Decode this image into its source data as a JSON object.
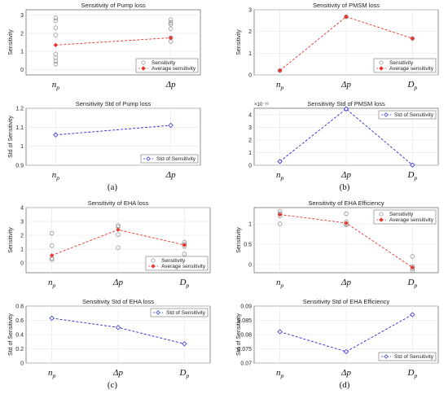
{
  "colors": {
    "sens": "#888888",
    "avg": "#e8352e",
    "std": "#2b2bd6",
    "grid": "#e6e6e6",
    "axis": "#444444"
  },
  "captions": [
    "(a)",
    "(b)",
    "(c)",
    "(d)"
  ],
  "chart_data": [
    {
      "id": "a1",
      "type": "scatter+line",
      "title": "Sensitivity of Pump loss",
      "ylabel": "Sensitivity",
      "categories": [
        {
          "base": "n",
          "sub": "p"
        },
        {
          "base": "Δp",
          "sub": ""
        }
      ],
      "ylim": [
        -0.3,
        3.3
      ],
      "yticks": [
        0,
        1,
        2,
        3
      ],
      "grid": true,
      "legend": "bottom-right",
      "series": [
        {
          "name": "Sensitivity",
          "kind": "markers",
          "points": [
            [
              0,
              2.85
            ],
            [
              0,
              2.7
            ],
            [
              0,
              2.3
            ],
            [
              0,
              1.9
            ],
            [
              0,
              0.85
            ],
            [
              0,
              0.65
            ],
            [
              0,
              0.45
            ],
            [
              0,
              0.3
            ],
            [
              1,
              2.75
            ],
            [
              1,
              2.6
            ],
            [
              1,
              2.5
            ],
            [
              1,
              2.25
            ],
            [
              1,
              1.75
            ],
            [
              1,
              1.55
            ]
          ]
        },
        {
          "name": "Average sensitivity",
          "kind": "avg",
          "values": [
            1.35,
            1.75
          ]
        }
      ]
    },
    {
      "id": "b1",
      "type": "scatter+line",
      "title": "Sensitivity of PMSM loss",
      "ylabel": "Sensitivity",
      "categories": [
        {
          "base": "n",
          "sub": "p"
        },
        {
          "base": "Δp",
          "sub": ""
        },
        {
          "base": "D",
          "sub": "p"
        }
      ],
      "ylim": [
        0,
        3
      ],
      "yticks": [
        0,
        1,
        2,
        3
      ],
      "grid": true,
      "legend": "bottom-right",
      "series": [
        {
          "name": "Sensitivity",
          "kind": "markers",
          "points": [
            [
              0,
              0.2
            ],
            [
              1,
              2.68
            ],
            [
              2,
              1.68
            ]
          ]
        },
        {
          "name": "Average sensitivity",
          "kind": "avg",
          "values": [
            0.2,
            2.68,
            1.68
          ]
        }
      ]
    },
    {
      "id": "a2",
      "type": "line",
      "title": "Sensitivity Std of Pump loss",
      "ylabel": "Std of Sensitivity",
      "categories": [
        {
          "base": "n",
          "sub": "p"
        },
        {
          "base": "Δp",
          "sub": ""
        }
      ],
      "ylim": [
        0.9,
        1.2
      ],
      "yticks": [
        0.9,
        1,
        1.1,
        1.2
      ],
      "grid": true,
      "legend": "bottom-right",
      "series": [
        {
          "name": "Std of Sensitivity",
          "kind": "std",
          "values": [
            1.06,
            1.11
          ]
        }
      ]
    },
    {
      "id": "b2",
      "type": "line",
      "title": "Sensitivity Std of PMSM loss",
      "ylabel": "",
      "yexponent": "×10⁻¹⁶",
      "categories": [
        {
          "base": "n",
          "sub": "p"
        },
        {
          "base": "Δp",
          "sub": ""
        },
        {
          "base": "D",
          "sub": "p"
        }
      ],
      "ylim": [
        0,
        4.5
      ],
      "yticks": [
        0,
        1,
        2,
        3,
        4
      ],
      "grid": true,
      "legend": "top-right",
      "series": [
        {
          "name": "Std of Sensitivity",
          "kind": "std",
          "values": [
            0.3,
            4.45,
            0.02
          ]
        }
      ]
    },
    {
      "id": "c1",
      "type": "scatter+line",
      "title": "Sensitivity of EHA loss",
      "ylabel": "Sensitivity",
      "categories": [
        {
          "base": "n",
          "sub": "p"
        },
        {
          "base": "Δp",
          "sub": ""
        },
        {
          "base": "D",
          "sub": "p"
        }
      ],
      "ylim": [
        -0.7,
        4
      ],
      "yticks": [
        -1,
        0,
        1,
        2,
        3,
        4
      ],
      "yticklabels": [
        "",
        "0",
        "1",
        "2",
        "3",
        "4"
      ],
      "grid": true,
      "legend": "bottom-right",
      "series": [
        {
          "name": "Sensitivity",
          "kind": "markers",
          "points": [
            [
              0,
              2.15
            ],
            [
              0,
              1.25
            ],
            [
              0,
              0.35
            ],
            [
              0,
              0.25
            ],
            [
              1,
              2.7
            ],
            [
              1,
              2.6
            ],
            [
              1,
              2.05
            ],
            [
              1,
              1.1
            ],
            [
              2,
              1.5
            ],
            [
              2,
              1.35
            ],
            [
              2,
              1.2
            ],
            [
              2,
              0.65
            ]
          ]
        },
        {
          "name": "Average sensitivity",
          "kind": "avg",
          "values": [
            0.55,
            2.4,
            1.3
          ]
        }
      ]
    },
    {
      "id": "d1",
      "type": "scatter+line",
      "title": "Sensitivity of EHA Efficiency",
      "ylabel": "Sensitivity",
      "categories": [
        {
          "base": "n",
          "sub": "p"
        },
        {
          "base": "Δp",
          "sub": ""
        },
        {
          "base": "D",
          "sub": "p"
        }
      ],
      "ylim": [
        -0.2,
        1.4
      ],
      "yticks": [
        0,
        0.5,
        1
      ],
      "grid": true,
      "legend": "top-right",
      "series": [
        {
          "name": "Sensitivity",
          "kind": "markers",
          "points": [
            [
              0,
              1.3
            ],
            [
              0,
              1.25
            ],
            [
              0,
              1.2
            ],
            [
              0,
              1.0
            ],
            [
              1,
              1.25
            ],
            [
              1,
              1.05
            ],
            [
              1,
              1.0
            ],
            [
              1,
              0.98
            ],
            [
              2,
              0.2
            ],
            [
              2,
              -0.05
            ],
            [
              2,
              -0.1
            ],
            [
              2,
              -0.15
            ]
          ]
        },
        {
          "name": "Average sensitivity",
          "kind": "avg",
          "values": [
            1.23,
            1.02,
            -0.07
          ]
        }
      ]
    },
    {
      "id": "c2",
      "type": "line",
      "title": "Sensitivity Std of EHA loss",
      "ylabel": "Std of Sensitivity",
      "categories": [
        {
          "base": "n",
          "sub": "p"
        },
        {
          "base": "Δp",
          "sub": ""
        },
        {
          "base": "D",
          "sub": "p"
        }
      ],
      "ylim": [
        0,
        0.8
      ],
      "yticks": [
        0,
        0.2,
        0.4,
        0.6,
        0.8
      ],
      "grid": true,
      "legend": "top-right",
      "series": [
        {
          "name": "Std of Sensitivity",
          "kind": "std",
          "values": [
            0.63,
            0.5,
            0.27
          ]
        }
      ]
    },
    {
      "id": "d2",
      "type": "line",
      "title": "Sensitivity Std of EHA Efficiency",
      "ylabel": "Std of Sensitivity",
      "categories": [
        {
          "base": "n",
          "sub": "p"
        },
        {
          "base": "Δp",
          "sub": ""
        },
        {
          "base": "D",
          "sub": "p"
        }
      ],
      "ylim": [
        0.07,
        0.09
      ],
      "yticks": [
        0.07,
        0.075,
        0.08,
        0.085,
        0.09
      ],
      "grid": true,
      "legend": "bottom-right",
      "series": [
        {
          "name": "Std of Sensitivity",
          "kind": "std",
          "values": [
            0.081,
            0.074,
            0.087
          ]
        }
      ]
    }
  ]
}
